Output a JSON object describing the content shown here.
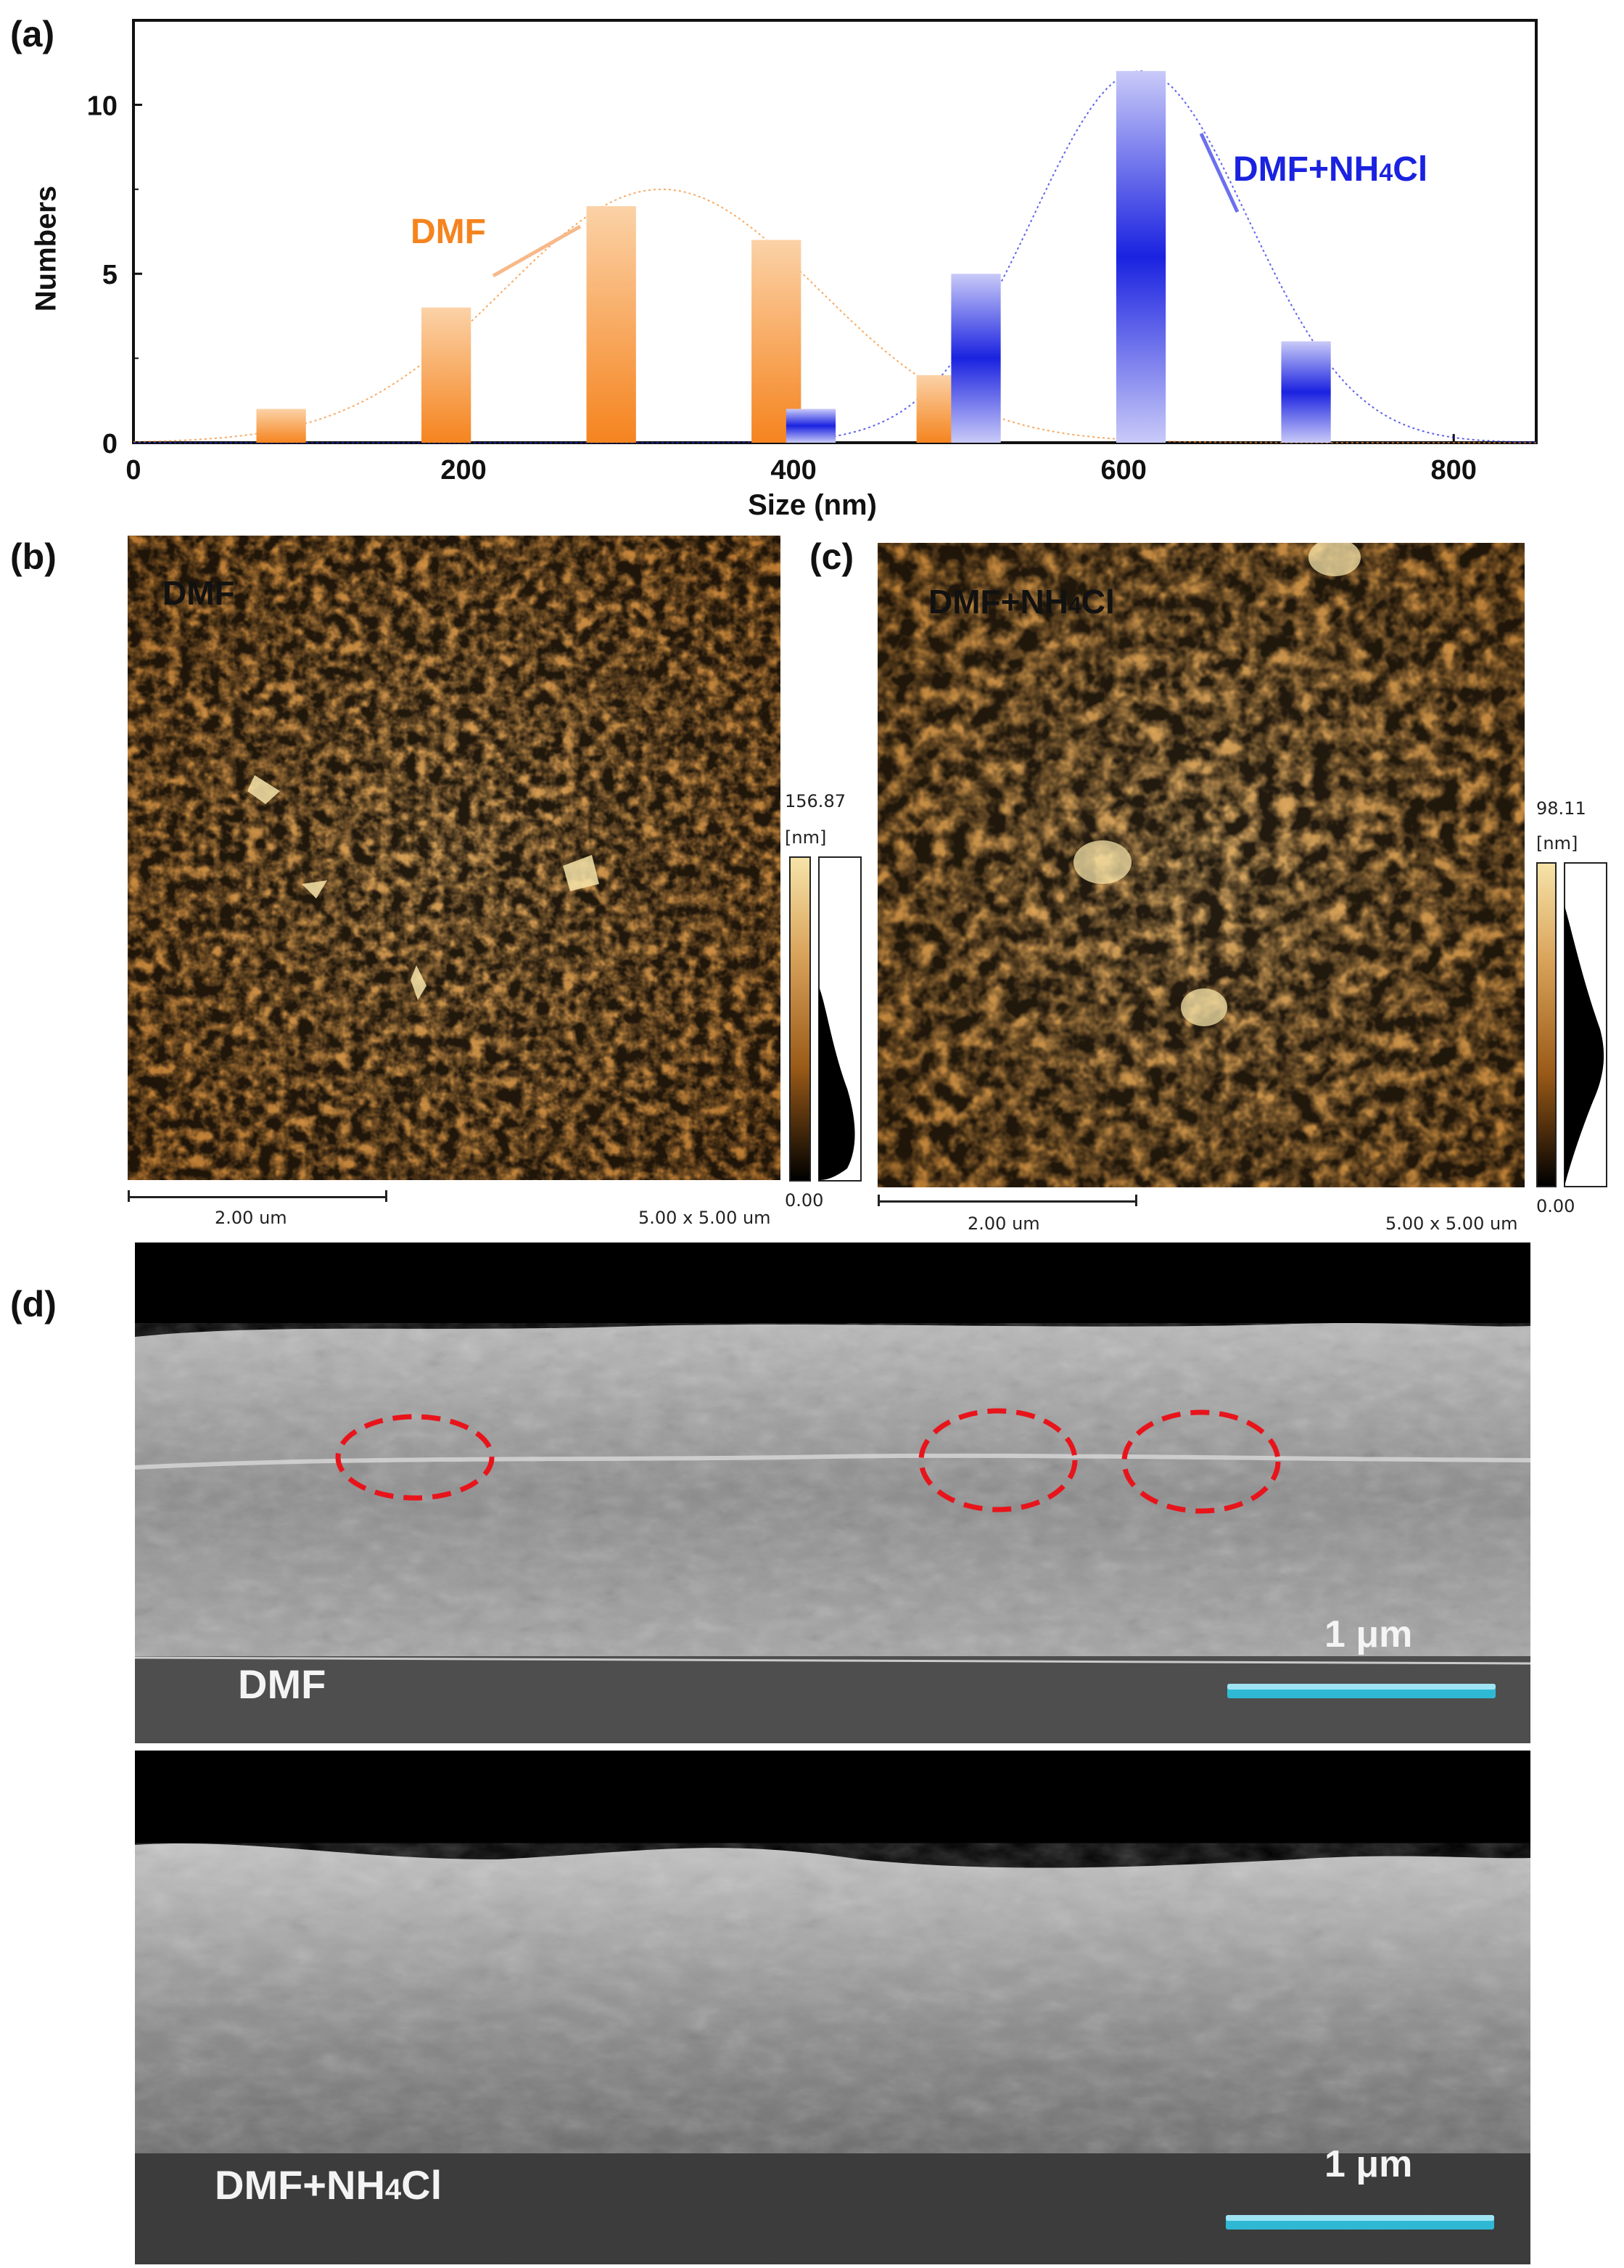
{
  "panels": {
    "a": "(a)",
    "b": "(b)",
    "c": "(c)",
    "d": "(d)"
  },
  "chart_data": {
    "type": "bar",
    "xlabel": "Size (nm)",
    "ylabel": "Numbers",
    "xlim": [
      0,
      850
    ],
    "ylim": [
      0,
      12.5
    ],
    "xticks": [
      0,
      200,
      400,
      600,
      800
    ],
    "yticks": [
      0,
      5,
      10
    ],
    "series": [
      {
        "name": "DMF",
        "color": "#f5841f",
        "x": [
          100,
          200,
          300,
          400,
          500
        ],
        "values": [
          1,
          4,
          7,
          6,
          2
        ],
        "fit_peak_x": 320,
        "fit_peak_y": 7.5
      },
      {
        "name": "DMF+NH4Cl",
        "color": "#1a22e0",
        "x": [
          400,
          500,
          600,
          700
        ],
        "values": [
          1,
          5,
          11,
          3
        ],
        "fit_peak_x": 610,
        "fit_peak_y": 11.0
      }
    ],
    "annotations": {
      "dmf_label": "DMF",
      "nh4cl_label_main": "DMF+NH",
      "nh4cl_label_sub": "4",
      "nh4cl_label_end": "Cl"
    }
  },
  "afm_b": {
    "label": "DMF",
    "max": "156.87",
    "unit": "[nm]",
    "min": "0.00",
    "scale": "2.00 um",
    "size": "5.00 x 5.00 um"
  },
  "afm_c": {
    "label_main": "DMF+NH",
    "label_sub": "4",
    "label_end": "Cl",
    "max": "98.11",
    "unit": "[nm]",
    "min": "0.00",
    "scale": "2.00 um",
    "size": "5.00 x 5.00 um"
  },
  "sem_top": {
    "label": "DMF",
    "scale": "1 μm"
  },
  "sem_bottom": {
    "label_main": "DMF+NH",
    "label_sub": "4",
    "label_end": "Cl",
    "scale": "1 μm"
  },
  "colors": {
    "orange": "#f5841f",
    "blue": "#1a22e0",
    "afm_dark": "#3a1c04",
    "afm_light": "#f6e3a8",
    "scale_cyan": "#2fb8d4",
    "marker_red": "#e8141b"
  }
}
